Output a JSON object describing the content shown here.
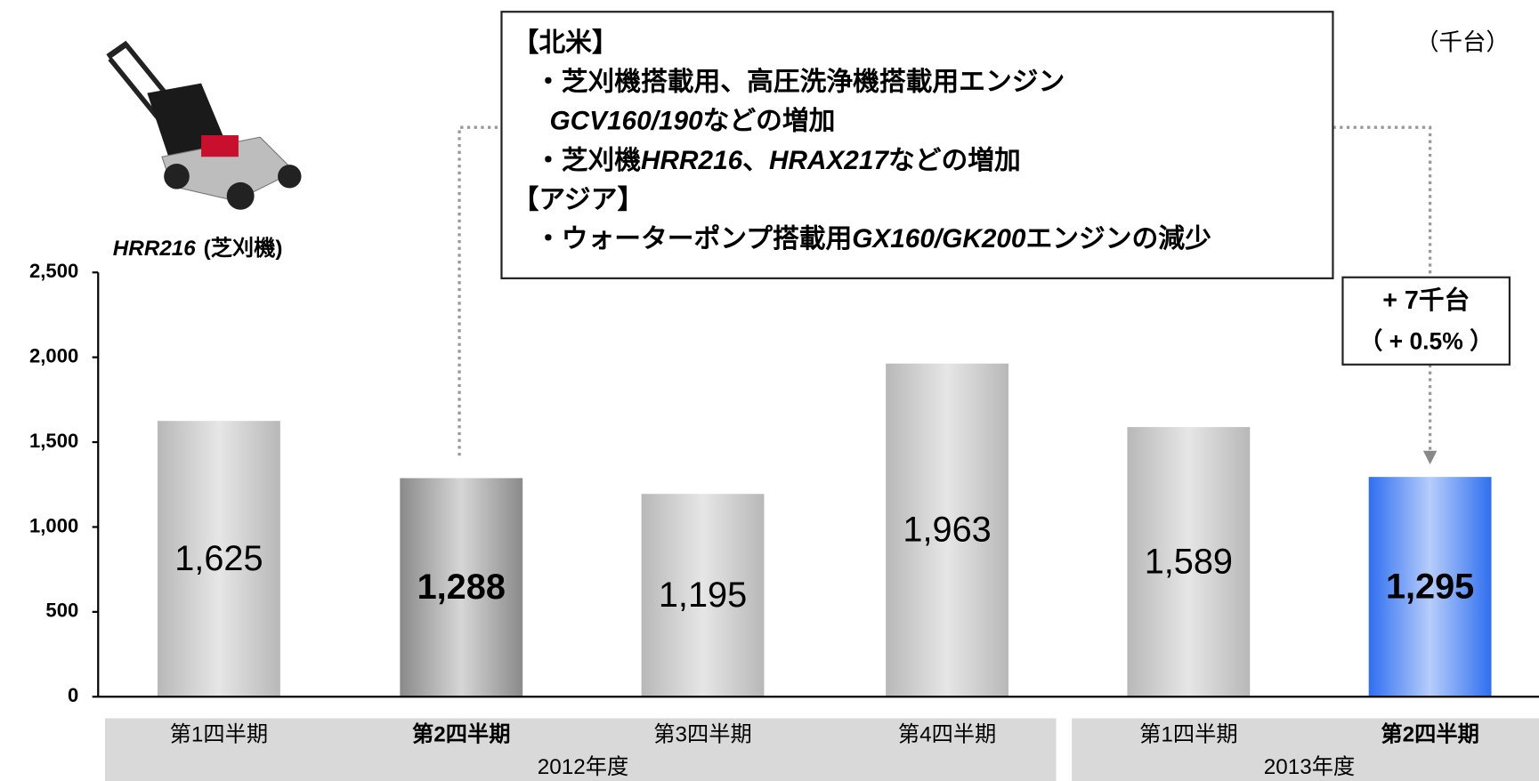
{
  "chart_data": {
    "type": "bar",
    "unit": "（千台）",
    "categories": [
      "第1四半期",
      "第2四半期",
      "第3四半期",
      "第4四半期",
      "第1四半期",
      "第2四半期"
    ],
    "groups": [
      {
        "label": "2012年度",
        "size": 4
      },
      {
        "label": "2013年度",
        "size": 2
      }
    ],
    "values": [
      1625,
      1288,
      1195,
      1963,
      1589,
      1295
    ],
    "value_labels": [
      "1,625",
      "1,288",
      "1,195",
      "1,963",
      "1,589",
      "1,295"
    ],
    "colors": [
      "#b8b8b8",
      "#8a8a8a",
      "#b8b8b8",
      "#b8b8b8",
      "#b8b8b8",
      "#2f6ff0"
    ],
    "ylim": [
      0,
      2500
    ],
    "yticks": [
      0,
      500,
      {
        "value": 1000,
        "label": "1,000"
      },
      {
        "value": 1500,
        "label": "1,500"
      },
      {
        "value": 2000,
        "label": "2,000"
      },
      {
        "value": 2500,
        "label": "2,500"
      }
    ],
    "product": {
      "model": "HRR216",
      "caption": "(芝刈機)"
    },
    "annotation": [
      [
        "【北米】"
      ],
      [
        "・芝刈機搭載用、高圧洗浄機搭載用エンジン"
      ],
      [
        "GCV160/190",
        "などの増加"
      ],
      [
        "・芝刈機",
        "HRR216",
        "、",
        "HRAX217",
        "などの増加"
      ],
      [
        "【アジア】"
      ],
      [
        "・ウォーターポンプ搭載用",
        "GX160/GK200",
        "エンジンの減少"
      ]
    ],
    "change": {
      "amount": "+ 7千台",
      "percent": "（ + 0.5% ）"
    }
  }
}
